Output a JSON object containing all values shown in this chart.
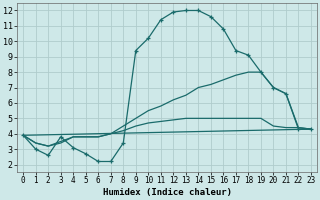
{
  "xlabel": "Humidex (Indice chaleur)",
  "xlim": [
    -0.5,
    23.5
  ],
  "ylim": [
    1.5,
    12.5
  ],
  "xticks": [
    0,
    1,
    2,
    3,
    4,
    5,
    6,
    7,
    8,
    9,
    10,
    11,
    12,
    13,
    14,
    15,
    16,
    17,
    18,
    19,
    20,
    21,
    22,
    23
  ],
  "yticks": [
    2,
    3,
    4,
    5,
    6,
    7,
    8,
    9,
    10,
    11,
    12
  ],
  "bg_color": "#cee8e8",
  "grid_color": "#b0cccc",
  "line_color": "#1a6b6b",
  "curve1_x": [
    0,
    1,
    2,
    3,
    4,
    5,
    6,
    7,
    8,
    9,
    10,
    11,
    12,
    13,
    14,
    15,
    16,
    17,
    18,
    19,
    20,
    21,
    22,
    23
  ],
  "curve1_y": [
    3.9,
    3.0,
    2.6,
    3.8,
    3.1,
    2.7,
    2.2,
    2.2,
    3.4,
    9.4,
    10.2,
    11.4,
    11.9,
    12.0,
    12.0,
    11.6,
    10.8,
    9.4,
    9.1,
    8.0,
    7.0,
    6.6,
    4.3,
    4.3
  ],
  "curve2_x": [
    0,
    1,
    2,
    3,
    4,
    5,
    6,
    7,
    8,
    9,
    10,
    11,
    12,
    13,
    14,
    15,
    16,
    17,
    18,
    19,
    20,
    21,
    22,
    23
  ],
  "curve2_y": [
    3.9,
    3.4,
    3.2,
    3.5,
    3.8,
    3.8,
    3.8,
    4.0,
    4.5,
    5.0,
    5.5,
    5.8,
    6.2,
    6.5,
    7.0,
    7.2,
    7.5,
    7.8,
    8.0,
    8.0,
    7.0,
    6.6,
    4.4,
    4.3
  ],
  "curve3_x": [
    0,
    1,
    2,
    3,
    4,
    5,
    6,
    7,
    8,
    9,
    10,
    11,
    12,
    13,
    14,
    15,
    16,
    17,
    18,
    19,
    20,
    21,
    22,
    23
  ],
  "curve3_y": [
    3.9,
    3.4,
    3.2,
    3.4,
    3.8,
    3.8,
    3.8,
    4.0,
    4.2,
    4.5,
    4.7,
    4.8,
    4.9,
    5.0,
    5.0,
    5.0,
    5.0,
    5.0,
    5.0,
    5.0,
    4.5,
    4.4,
    4.4,
    4.3
  ],
  "curve4_x": [
    0,
    23
  ],
  "curve4_y": [
    3.9,
    4.3
  ]
}
